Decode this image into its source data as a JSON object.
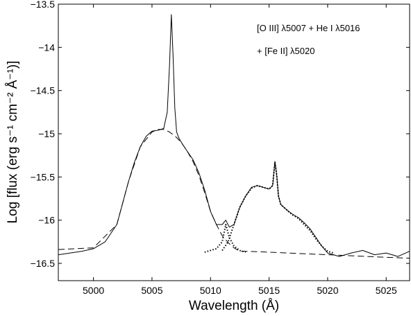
{
  "chart_data": {
    "type": "line",
    "title": "",
    "xlabel": "Wavelength (Å)",
    "ylabel": "Log [flux (erg s⁻¹ cm⁻² Å⁻¹)]",
    "xlim": [
      4997,
      5027
    ],
    "ylim": [
      -16.7,
      -13.5
    ],
    "xticks": [
      5000,
      5005,
      5010,
      5015,
      5020,
      5025
    ],
    "xtick_labels": [
      "5000",
      "5005",
      "5010",
      "5015",
      "5020",
      "5025"
    ],
    "yticks": [
      -13.5,
      -14,
      -14.5,
      -15,
      -15.5,
      -16,
      -16.5
    ],
    "ytick_labels": [
      "−13.5",
      "−14",
      "−14.5",
      "−15",
      "−15.5",
      "−16",
      "−16.5"
    ],
    "annotations": [
      "[O III] λ5007 + He I λ5016",
      "+ [Fe II] λ5020"
    ],
    "series": [
      {
        "style": "solid",
        "x": [
          4997.0,
          4998.0,
          4999.0,
          5000.0,
          5001.0,
          5002.0,
          5002.5,
          5003.0,
          5003.5,
          5004.0,
          5004.5,
          5005.0,
          5005.5,
          5006.0,
          5006.3,
          5006.5,
          5006.65,
          5006.8,
          5006.95,
          5007.1,
          5007.3,
          5007.6,
          5008.0,
          5008.5,
          5009.0,
          5009.5,
          5010.0,
          5010.5,
          5011.0,
          5011.3,
          5011.6,
          5012.0,
          5012.5,
          5013.0,
          5013.5,
          5014.0,
          5014.5,
          5015.0,
          5015.3,
          5015.5,
          5015.65,
          5015.8,
          5016.0,
          5016.5,
          5017.0,
          5017.5,
          5018.0,
          5018.5,
          5019.0,
          5019.5,
          5020.0,
          5021.0,
          5022.0,
          5023.0,
          5024.0,
          5025.0,
          5026.0,
          5027.0
        ],
        "y": [
          -16.4,
          -16.38,
          -16.36,
          -16.33,
          -16.25,
          -16.05,
          -15.8,
          -15.55,
          -15.33,
          -15.15,
          -15.03,
          -14.97,
          -14.96,
          -14.94,
          -14.75,
          -14.2,
          -13.62,
          -14.1,
          -14.7,
          -14.98,
          -15.05,
          -15.12,
          -15.2,
          -15.3,
          -15.45,
          -15.65,
          -15.9,
          -16.05,
          -16.05,
          -16.0,
          -16.08,
          -16.05,
          -15.85,
          -15.72,
          -15.62,
          -15.6,
          -15.62,
          -15.64,
          -15.6,
          -15.32,
          -15.48,
          -15.72,
          -15.82,
          -15.88,
          -15.93,
          -15.97,
          -16.03,
          -16.1,
          -16.2,
          -16.3,
          -16.38,
          -16.42,
          -16.38,
          -16.35,
          -16.4,
          -16.38,
          -16.42,
          -16.36
        ]
      },
      {
        "style": "dashed",
        "x": [
          4997.0,
          5000.0,
          5002.0,
          5003.0,
          5004.0,
          5005.0,
          5005.5,
          5006.0,
          5006.5,
          5007.0,
          5007.5,
          5008.0,
          5008.5,
          5009.0,
          5009.5,
          5010.0,
          5010.5,
          5011.0,
          5011.5,
          5012.0,
          5012.5,
          5013.0,
          5015.0,
          5020.0,
          5025.0,
          5027.0
        ],
        "y": [
          -16.34,
          -16.32,
          -16.05,
          -15.55,
          -15.15,
          -14.98,
          -14.95,
          -14.95,
          -14.98,
          -15.03,
          -15.1,
          -15.2,
          -15.32,
          -15.48,
          -15.68,
          -15.9,
          -16.05,
          -16.18,
          -16.26,
          -16.32,
          -16.36,
          -16.36,
          -16.37,
          -16.4,
          -16.43,
          -16.44
        ]
      },
      {
        "style": "dotted",
        "x": [
          5009.5,
          5010.5,
          5011.0,
          5011.3,
          5011.6,
          5012.0,
          5012.5,
          5013.0
        ],
        "y": [
          -16.37,
          -16.33,
          -16.25,
          -16.05,
          -16.2,
          -16.3,
          -16.35,
          -16.37
        ]
      },
      {
        "style": "dotted",
        "x": [
          5011.0,
          5011.5,
          5012.0,
          5012.5,
          5013.0,
          5013.5,
          5014.0,
          5014.5,
          5015.0,
          5015.3,
          5015.5,
          5015.65,
          5015.8,
          5016.0,
          5016.5,
          5017.0,
          5017.5,
          5018.0,
          5018.5,
          5019.0,
          5019.5,
          5020.0,
          5020.5
        ],
        "y": [
          -16.35,
          -16.25,
          -16.05,
          -15.85,
          -15.72,
          -15.63,
          -15.6,
          -15.62,
          -15.64,
          -15.6,
          -15.33,
          -15.48,
          -15.72,
          -15.82,
          -15.88,
          -15.94,
          -15.98,
          -16.05,
          -16.12,
          -16.22,
          -16.3,
          -16.36,
          -16.38
        ]
      }
    ]
  }
}
